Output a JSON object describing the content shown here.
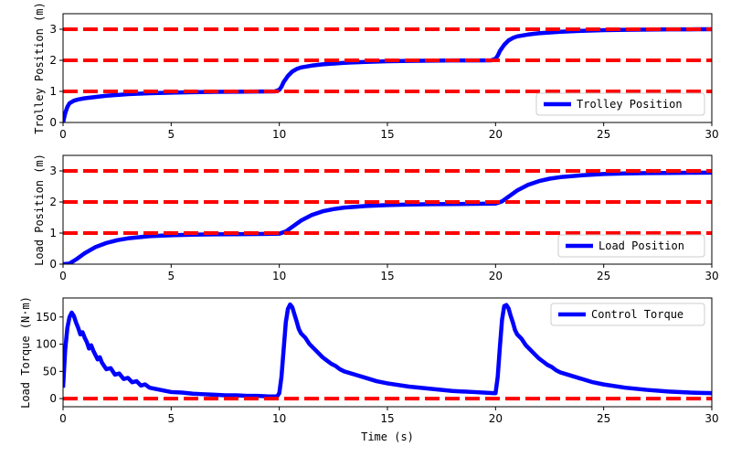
{
  "chart_data": [
    {
      "type": "line",
      "ylabel": "Trolley Position (m)",
      "xlabel": "",
      "xlim": [
        0,
        30
      ],
      "ylim": [
        0,
        3.5
      ],
      "xticks": [
        0,
        5,
        10,
        15,
        20,
        25,
        30
      ],
      "yticks": [
        0,
        1,
        2,
        3
      ],
      "legend": "lower-right",
      "grid": false,
      "series": [
        {
          "name": "Trolley Position",
          "color": "#0000ff",
          "style": "solid",
          "x": [
            0,
            0.1,
            0.2,
            0.3,
            0.5,
            0.7,
            1,
            1.5,
            2,
            3,
            4,
            5,
            6,
            7,
            8,
            9,
            9.8,
            10,
            10.1,
            10.2,
            10.4,
            10.6,
            10.8,
            11,
            11.5,
            12,
            13,
            14,
            15,
            16,
            17,
            18,
            19,
            19.8,
            20,
            20.1,
            20.2,
            20.4,
            20.6,
            20.8,
            21,
            21.5,
            22,
            23,
            24,
            25,
            26,
            27,
            28,
            29,
            30
          ],
          "y": [
            0,
            0.3,
            0.5,
            0.62,
            0.7,
            0.74,
            0.78,
            0.82,
            0.86,
            0.91,
            0.94,
            0.96,
            0.975,
            0.985,
            0.99,
            0.995,
            1.0,
            1.05,
            1.15,
            1.3,
            1.5,
            1.64,
            1.72,
            1.77,
            1.83,
            1.87,
            1.92,
            1.95,
            1.97,
            1.98,
            1.99,
            1.995,
            1.998,
            2.0,
            2.05,
            2.15,
            2.3,
            2.5,
            2.64,
            2.72,
            2.77,
            2.83,
            2.87,
            2.92,
            2.95,
            2.97,
            2.98,
            2.99,
            2.995,
            2.998,
            3.0
          ]
        },
        {
          "name": "",
          "color": "#ff0000",
          "style": "dashed",
          "x": [
            0,
            30
          ],
          "y": [
            1,
            1
          ]
        },
        {
          "name": "",
          "color": "#ff0000",
          "style": "dashed",
          "x": [
            0,
            30
          ],
          "y": [
            2,
            2
          ]
        },
        {
          "name": "",
          "color": "#ff0000",
          "style": "dashed",
          "x": [
            0,
            30
          ],
          "y": [
            3,
            3
          ]
        }
      ]
    },
    {
      "type": "line",
      "ylabel": "Load Position (m)",
      "xlabel": "",
      "xlim": [
        0,
        30
      ],
      "ylim": [
        0,
        3.5
      ],
      "xticks": [
        0,
        5,
        10,
        15,
        20,
        25,
        30
      ],
      "yticks": [
        0,
        1,
        2,
        3
      ],
      "legend": "lower-right",
      "grid": false,
      "series": [
        {
          "name": "Load Position",
          "color": "#0000ff",
          "style": "solid",
          "x": [
            0,
            0.3,
            0.6,
            1,
            1.5,
            2,
            2.5,
            3,
            4,
            5,
            6,
            7,
            8,
            9,
            9.5,
            10,
            10.3,
            10.6,
            11,
            11.5,
            12,
            12.5,
            13,
            14,
            15,
            16,
            17,
            18,
            19,
            19.5,
            20,
            20.3,
            20.6,
            21,
            21.5,
            22,
            22.5,
            23,
            24,
            25,
            26,
            27,
            28,
            29,
            30
          ],
          "y": [
            0,
            0.02,
            0.15,
            0.35,
            0.55,
            0.68,
            0.77,
            0.83,
            0.9,
            0.93,
            0.95,
            0.96,
            0.965,
            0.97,
            0.975,
            0.98,
            1.05,
            1.2,
            1.4,
            1.58,
            1.7,
            1.77,
            1.82,
            1.87,
            1.9,
            1.92,
            1.93,
            1.935,
            1.94,
            1.945,
            1.95,
            2.02,
            2.17,
            2.37,
            2.55,
            2.67,
            2.75,
            2.8,
            2.86,
            2.9,
            2.92,
            2.93,
            2.935,
            2.94,
            2.945
          ]
        },
        {
          "name": "",
          "color": "#ff0000",
          "style": "dashed",
          "x": [
            0,
            30
          ],
          "y": [
            1,
            1
          ]
        },
        {
          "name": "",
          "color": "#ff0000",
          "style": "dashed",
          "x": [
            0,
            30
          ],
          "y": [
            2,
            2
          ]
        },
        {
          "name": "",
          "color": "#ff0000",
          "style": "dashed",
          "x": [
            0,
            30
          ],
          "y": [
            3,
            3
          ]
        }
      ]
    },
    {
      "type": "line",
      "ylabel": "Load Torque (N·m)",
      "xlabel": "Time (s)",
      "xlim": [
        0,
        30
      ],
      "ylim": [
        -15,
        185
      ],
      "xticks": [
        0,
        5,
        10,
        15,
        20,
        25,
        30
      ],
      "yticks": [
        0,
        50,
        100,
        150
      ],
      "legend": "upper-right",
      "grid": false,
      "series": [
        {
          "name": "Control Torque",
          "color": "#0000ff",
          "style": "solid",
          "x": [
            0,
            0.1,
            0.2,
            0.3,
            0.4,
            0.5,
            0.6,
            0.7,
            0.8,
            0.9,
            1.0,
            1.1,
            1.2,
            1.3,
            1.4,
            1.5,
            1.6,
            1.7,
            1.8,
            1.9,
            2.0,
            2.2,
            2.4,
            2.6,
            2.8,
            3.0,
            3.2,
            3.4,
            3.6,
            3.8,
            4.0,
            4.5,
            5,
            5.5,
            6,
            6.5,
            7,
            7.5,
            8,
            8.5,
            9,
            9.5,
            9.9,
            10.0,
            10.1,
            10.2,
            10.3,
            10.4,
            10.5,
            10.6,
            10.7,
            10.8,
            10.9,
            11.0,
            11.2,
            11.4,
            11.6,
            11.8,
            12.0,
            12.2,
            12.4,
            12.6,
            12.8,
            13.0,
            13.5,
            14,
            14.5,
            15,
            16,
            17,
            18,
            19,
            19.9,
            20.0,
            20.1,
            20.2,
            20.3,
            20.4,
            20.5,
            20.6,
            20.7,
            20.8,
            20.9,
            21.0,
            21.2,
            21.4,
            21.6,
            21.8,
            22.0,
            22.2,
            22.4,
            22.6,
            22.8,
            23.0,
            23.5,
            24,
            24.5,
            25,
            26,
            27,
            28,
            29,
            30
          ],
          "y": [
            20,
            90,
            130,
            150,
            158,
            152,
            140,
            130,
            118,
            122,
            112,
            104,
            92,
            98,
            88,
            80,
            72,
            76,
            66,
            60,
            54,
            56,
            44,
            46,
            36,
            38,
            30,
            32,
            24,
            26,
            20,
            16,
            12,
            11,
            9,
            8,
            7,
            6,
            6,
            5,
            5,
            4,
            4,
            10,
            40,
            90,
            140,
            165,
            173,
            168,
            155,
            142,
            128,
            120,
            112,
            100,
            92,
            84,
            76,
            70,
            64,
            60,
            54,
            50,
            44,
            38,
            32,
            28,
            22,
            18,
            14,
            12,
            10,
            10,
            40,
            95,
            145,
            170,
            172,
            166,
            152,
            140,
            126,
            118,
            110,
            98,
            90,
            82,
            74,
            68,
            62,
            58,
            52,
            48,
            42,
            36,
            30,
            26,
            20,
            16,
            13,
            11,
            10
          ]
        },
        {
          "name": "",
          "color": "#ff0000",
          "style": "dashed",
          "x": [
            0,
            30
          ],
          "y": [
            0,
            0
          ]
        }
      ]
    }
  ]
}
